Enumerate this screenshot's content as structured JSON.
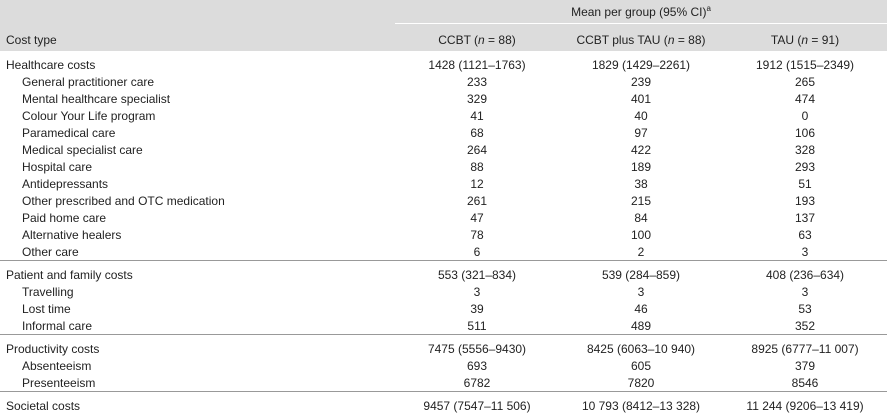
{
  "header": {
    "group_label": "Mean per group (95% CI)",
    "group_sup": "a",
    "cost_type": "Cost type",
    "columns": [
      {
        "before": "CCBT (",
        "n": "n",
        "after": " = 88)"
      },
      {
        "before": "CCBT plus TAU (",
        "n": "n",
        "after": " = 88)"
      },
      {
        "before": "TAU (",
        "n": "n",
        "after": " = 91)"
      }
    ]
  },
  "sections": [
    {
      "rows": [
        [
          "Healthcare costs",
          "1428 (1121–1763)",
          "1829 (1429–2261)",
          "1912 (1515–2349)"
        ],
        [
          "General practitioner care",
          "233",
          "239",
          "265"
        ],
        [
          "Mental healthcare specialist",
          "329",
          "401",
          "474"
        ],
        [
          "Colour Your Life program",
          "41",
          "40",
          "0"
        ],
        [
          "Paramedical care",
          "68",
          "97",
          "106"
        ],
        [
          "Medical specialist care",
          "264",
          "422",
          "328"
        ],
        [
          "Hospital care",
          "88",
          "189",
          "293"
        ],
        [
          "Antidepressants",
          "12",
          "38",
          "51"
        ],
        [
          "Other prescribed and OTC medication",
          "261",
          "215",
          "193"
        ],
        [
          "Paid home care",
          "47",
          "84",
          "137"
        ],
        [
          "Alternative healers",
          "78",
          "100",
          "63"
        ],
        [
          "Other care",
          "6",
          "2",
          "3"
        ]
      ]
    },
    {
      "rows": [
        [
          "Patient and family costs",
          "553 (321–834)",
          "539 (284–859)",
          "408 (236–634)"
        ],
        [
          "Travelling",
          "3",
          "3",
          "3"
        ],
        [
          "Lost time",
          "39",
          "46",
          "53"
        ],
        [
          "Informal care",
          "511",
          "489",
          "352"
        ]
      ]
    },
    {
      "rows": [
        [
          "Productivity costs",
          "7475 (5556–9430)",
          "8425 (6063–10 940)",
          "8925 (6777–11 007)"
        ],
        [
          "Absenteeism",
          "693",
          "605",
          "379"
        ],
        [
          "Presenteeism",
          "6782",
          "7820",
          "8546"
        ]
      ]
    },
    {
      "rows": [
        [
          "Societal costs",
          "9457 (7547–11 506)",
          "10 793 (8412–13 328)",
          "11 244 (9206–13 419)"
        ]
      ]
    }
  ]
}
